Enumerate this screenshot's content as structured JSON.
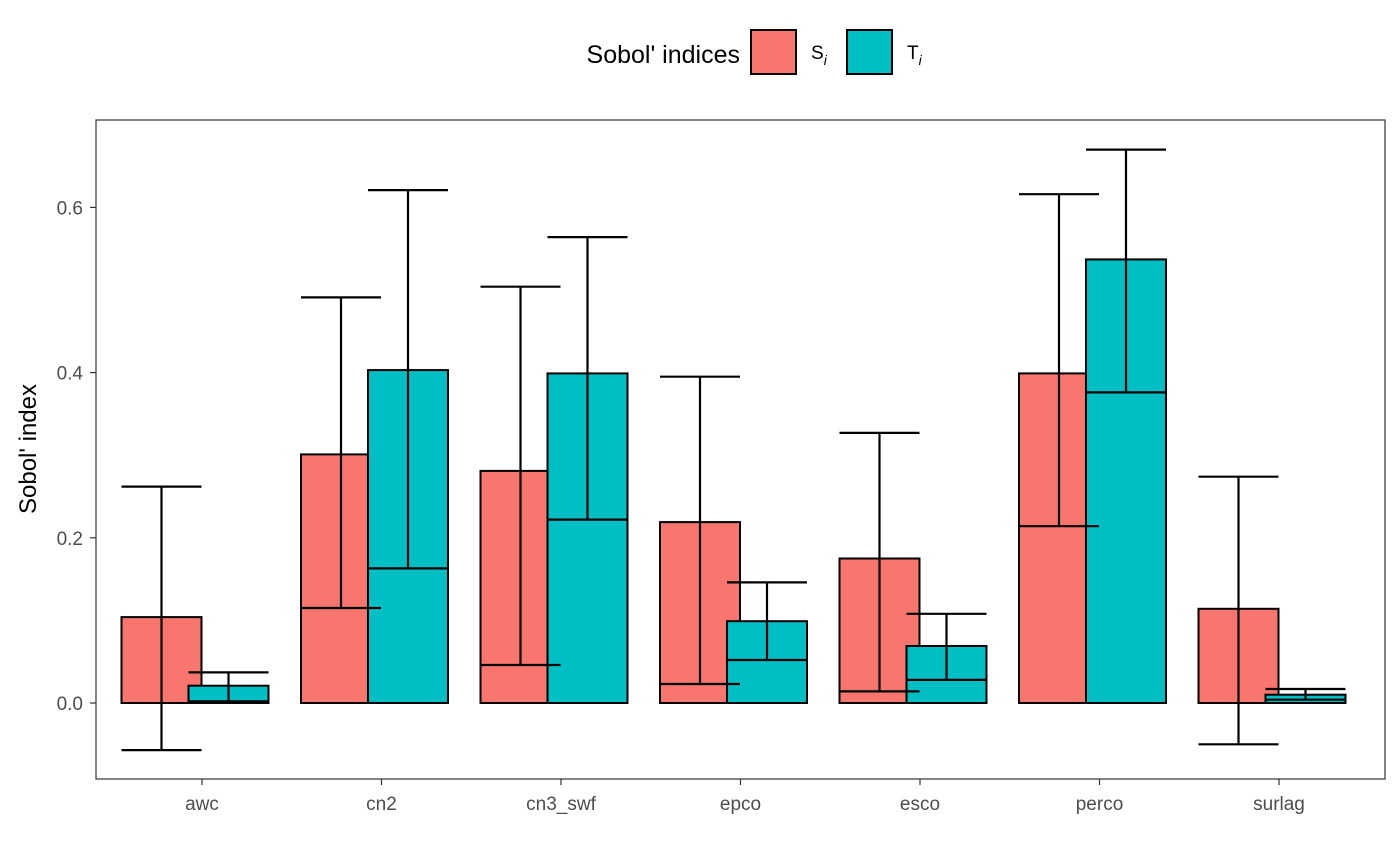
{
  "chart_data": {
    "type": "bar",
    "title": "",
    "xlabel": "",
    "ylabel": "Sobol' index",
    "ylim": [
      -0.09,
      0.7
    ],
    "yticks": [
      "0.0",
      "0.2",
      "0.4",
      "0.6"
    ],
    "categories": [
      "awc",
      "cn2",
      "cn3_swf",
      "epco",
      "esco",
      "perco",
      "surlag"
    ],
    "legend": {
      "title": "Sobol' indices",
      "position": "top"
    },
    "series": [
      {
        "name": "S",
        "subscript": "i",
        "color": "#F8766D",
        "values": [
          0.104,
          0.301,
          0.281,
          0.219,
          0.175,
          0.399,
          0.114
        ],
        "lower": [
          -0.057,
          0.115,
          0.046,
          0.023,
          0.014,
          0.214,
          -0.05
        ],
        "upper": [
          0.262,
          0.491,
          0.504,
          0.395,
          0.327,
          0.616,
          0.274
        ]
      },
      {
        "name": "T",
        "subscript": "i",
        "color": "#00BFC4",
        "values": [
          0.021,
          0.403,
          0.399,
          0.099,
          0.069,
          0.537,
          0.01
        ],
        "lower": [
          0.002,
          0.163,
          0.222,
          0.052,
          0.028,
          0.376,
          0.004
        ],
        "upper": [
          0.037,
          0.621,
          0.564,
          0.146,
          0.108,
          0.67,
          0.017
        ]
      }
    ],
    "grid": false,
    "panel_border": true
  }
}
